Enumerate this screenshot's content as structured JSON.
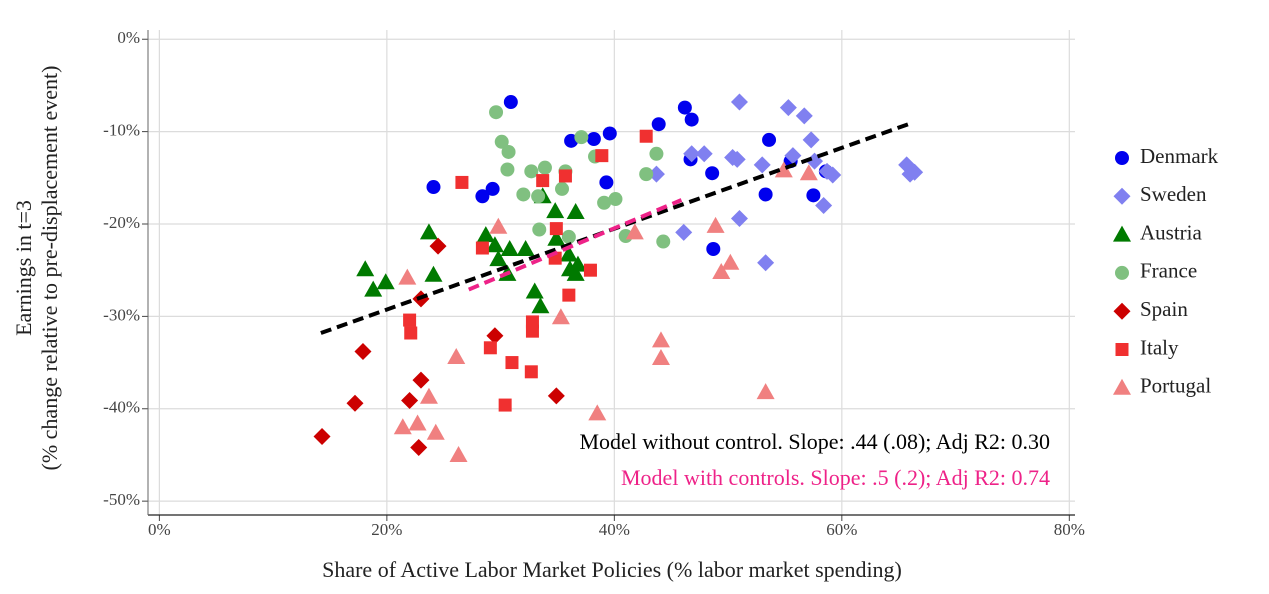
{
  "chart_data": {
    "type": "scatter",
    "x_label": "Share of Active Labor Market Policies (% labor market spending)",
    "y_label": [
      "Earnings in t=3",
      "(% change relative to pre-displacement event)"
    ],
    "xlim": [
      -1,
      80.5
    ],
    "ylim": [
      -51.5,
      1
    ],
    "xticks": [
      {
        "value": 0,
        "label": "0%"
      },
      {
        "value": 20,
        "label": "20%"
      },
      {
        "value": 40,
        "label": "40%"
      },
      {
        "value": 60,
        "label": "60%"
      },
      {
        "value": 80,
        "label": "80%"
      }
    ],
    "yticks": [
      {
        "value": 0,
        "label": "0%"
      },
      {
        "value": -10,
        "label": "-10%"
      },
      {
        "value": -20,
        "label": "-20%"
      },
      {
        "value": -30,
        "label": "-30%"
      },
      {
        "value": -40,
        "label": "-40%"
      },
      {
        "value": -50,
        "label": "-50%"
      }
    ],
    "grid": true,
    "legend": "right",
    "series": [
      {
        "name": "Denmark",
        "color": "#0000ee",
        "marker": "circle",
        "x": [
          24.1,
          28.4,
          29.3,
          30.9,
          36.2,
          38.2,
          39.6,
          43.9,
          46.2,
          46.8,
          46.7,
          39.3,
          48.6,
          48.7,
          53.6,
          53.3,
          55.5,
          57.5,
          58.6
        ],
        "values": [
          -16.0,
          -17.0,
          -16.2,
          -6.8,
          -11.0,
          -10.8,
          -10.2,
          -9.2,
          -7.4,
          -8.7,
          -13.0,
          -15.5,
          -14.5,
          -22.7,
          -10.9,
          -16.8,
          -13.2,
          -16.9,
          -14.3
        ]
      },
      {
        "name": "Sweden",
        "color": "#8080f0",
        "marker": "diamond",
        "x": [
          51.0,
          55.3,
          56.7,
          57.3,
          46.8,
          43.7,
          47.9,
          50.4,
          50.8,
          53.0,
          55.7,
          57.6,
          58.7,
          59.2,
          65.7,
          66.0,
          66.4,
          46.1,
          51.0,
          58.4,
          53.3
        ],
        "values": [
          -6.8,
          -7.4,
          -8.3,
          -10.9,
          -12.4,
          -14.6,
          -12.4,
          -12.8,
          -13.0,
          -13.6,
          -12.6,
          -13.2,
          -14.3,
          -14.7,
          -13.6,
          -14.6,
          -14.4,
          -20.9,
          -19.4,
          -18.0,
          -24.2
        ]
      },
      {
        "name": "Austria",
        "color": "#007a00",
        "marker": "triangle",
        "x": [
          18.1,
          18.8,
          19.9,
          23.7,
          24.1,
          28.7,
          29.5,
          29.8,
          30.8,
          30.6,
          32.2,
          33.0,
          33.5,
          33.7,
          34.8,
          34.9,
          36.0,
          36.1,
          36.6,
          36.6,
          36.8
        ],
        "values": [
          -24.9,
          -27.1,
          -26.3,
          -20.9,
          -25.5,
          -21.2,
          -22.3,
          -23.8,
          -22.7,
          -25.4,
          -22.7,
          -27.3,
          -28.9,
          -17.0,
          -18.6,
          -21.6,
          -23.3,
          -24.9,
          -18.7,
          -25.4,
          -24.4
        ]
      },
      {
        "name": "France",
        "color": "#80c080",
        "marker": "circle",
        "x": [
          29.6,
          30.1,
          30.7,
          30.6,
          32.0,
          32.7,
          33.3,
          33.9,
          33.4,
          35.4,
          35.7,
          36.0,
          37.1,
          38.3,
          39.1,
          40.1,
          41.0,
          42.8,
          43.7,
          44.3
        ],
        "values": [
          -7.9,
          -11.1,
          -12.2,
          -14.1,
          -16.8,
          -14.3,
          -17.0,
          -13.9,
          -20.6,
          -16.2,
          -14.3,
          -21.4,
          -10.6,
          -12.7,
          -17.7,
          -17.3,
          -21.3,
          -14.6,
          -12.4,
          -21.9
        ]
      },
      {
        "name": "Spain",
        "color": "#cc0000",
        "marker": "diamond",
        "x": [
          14.3,
          17.2,
          17.9,
          22.0,
          22.8,
          23.0,
          23.0,
          24.5,
          29.5,
          34.9
        ],
        "values": [
          -43.0,
          -39.4,
          -33.8,
          -39.1,
          -44.2,
          -36.9,
          -28.1,
          -22.4,
          -32.1,
          -38.6
        ]
      },
      {
        "name": "Italy",
        "color": "#f03030",
        "marker": "square",
        "x": [
          26.6,
          22.0,
          22.1,
          28.4,
          29.1,
          31.0,
          30.4,
          32.8,
          32.8,
          32.7,
          33.7,
          34.8,
          34.9,
          35.7,
          36.0,
          37.9,
          38.9,
          42.8
        ],
        "values": [
          -15.5,
          -30.4,
          -31.8,
          -22.6,
          -33.4,
          -35.0,
          -39.6,
          -30.6,
          -31.6,
          -36.0,
          -15.3,
          -23.7,
          -20.5,
          -14.8,
          -27.7,
          -25.0,
          -12.6,
          -10.5
        ]
      },
      {
        "name": "Portugal",
        "color": "#f08080",
        "marker": "triangle",
        "x": [
          21.4,
          21.8,
          22.7,
          23.7,
          24.3,
          26.1,
          26.3,
          29.8,
          35.3,
          38.5,
          41.8,
          44.1,
          44.1,
          48.9,
          49.4,
          50.2,
          53.3,
          54.9,
          57.1
        ],
        "values": [
          -42.0,
          -25.8,
          -41.6,
          -38.7,
          -42.6,
          -34.4,
          -45.0,
          -20.3,
          -30.1,
          -40.5,
          -20.9,
          -34.5,
          -32.6,
          -20.2,
          -25.2,
          -24.2,
          -38.2,
          -14.2,
          -14.5
        ]
      }
    ],
    "fit_lines": [
      {
        "color": "#000000",
        "x": [
          14.2,
          66.3
        ],
        "values": [
          -31.8,
          -9.0
        ]
      },
      {
        "color": "#ee2288",
        "x": [
          27.2,
          45.9
        ],
        "values": [
          -27.1,
          -17.4
        ]
      }
    ],
    "annotations": [
      {
        "text": "Model without control. Slope: .44 (.08); Adj R2: 0.30",
        "color": "#000000"
      },
      {
        "text": "Model with controls. Slope: .5 (.2); Adj R2: 0.74",
        "color": "#ee2288"
      }
    ]
  }
}
